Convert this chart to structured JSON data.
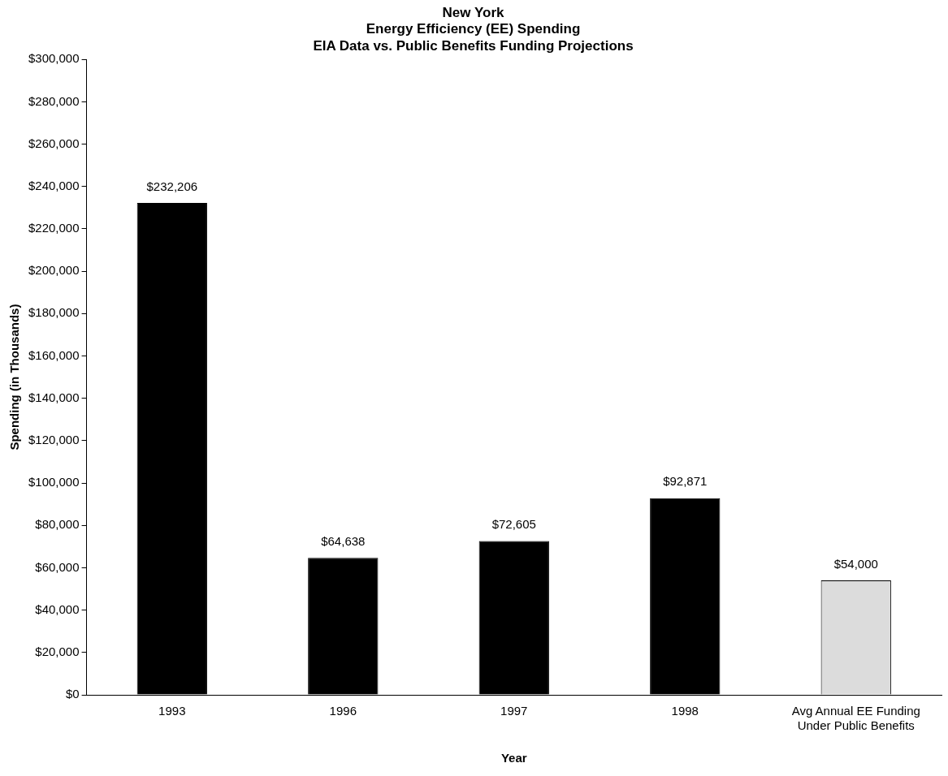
{
  "chart_data": {
    "type": "bar",
    "title": "New York\nEnergy Efficiency (EE) Spending\nEIA Data vs. Public Benefits Funding Projections",
    "xlabel": "Year",
    "ylabel": "Spending (in Thousands)",
    "categories": [
      "1993",
      "1996",
      "1997",
      "1998",
      "Avg Annual EE Funding\nUnder Public Benefits"
    ],
    "values": [
      232206,
      64638,
      72605,
      92871,
      54000
    ],
    "colors": [
      "#000000",
      "#000000",
      "#000000",
      "#000000",
      "#dcdcdc"
    ],
    "value_labels": [
      "$232,206",
      "$64,638",
      "$72,605",
      "$92,871",
      "$54,000"
    ],
    "ylim": [
      0,
      300000
    ],
    "yticks": [
      {
        "value": 0,
        "label": "$0"
      },
      {
        "value": 20000,
        "label": "$20,000"
      },
      {
        "value": 40000,
        "label": "$40,000"
      },
      {
        "value": 60000,
        "label": "$60,000"
      },
      {
        "value": 80000,
        "label": "$80,000"
      },
      {
        "value": 100000,
        "label": "$100,000"
      },
      {
        "value": 120000,
        "label": "$120,000"
      },
      {
        "value": 140000,
        "label": "$140,000"
      },
      {
        "value": 160000,
        "label": "$160,000"
      },
      {
        "value": 180000,
        "label": "$180,000"
      },
      {
        "value": 200000,
        "label": "$200,000"
      },
      {
        "value": 220000,
        "label": "$220,000"
      },
      {
        "value": 240000,
        "label": "$240,000"
      },
      {
        "value": 260000,
        "label": "$260,000"
      },
      {
        "value": 280000,
        "label": "$280,000"
      },
      {
        "value": 300000,
        "label": "$300,000"
      }
    ],
    "grid": false,
    "legend": false
  }
}
